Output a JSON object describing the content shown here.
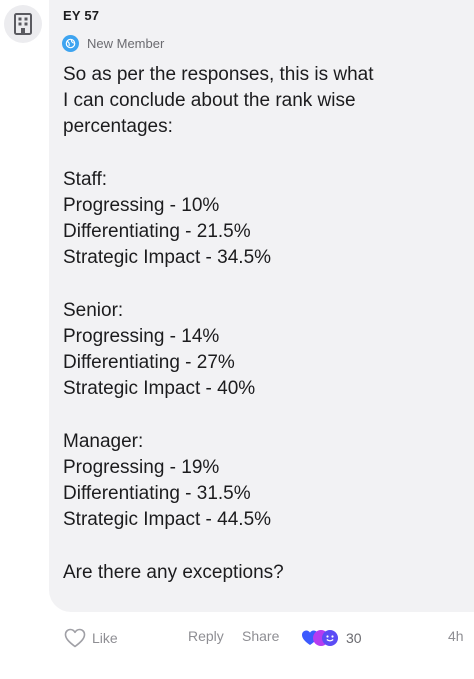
{
  "post": {
    "author": "EY 57",
    "role": "New Member",
    "body_lines": [
      "So as per the responses, this is what",
      "I can conclude about the rank wise",
      "percentages:",
      "",
      "Staff:",
      "Progressing - 10%",
      "Differentiating - 21.5%",
      "Strategic Impact - 34.5%",
      "",
      "Senior:",
      "Progressing - 14%",
      "Differentiating - 27%",
      "Strategic Impact - 40%",
      "",
      "Manager:",
      "Progressing - 19%",
      "Differentiating - 31.5%",
      "Strategic Impact - 44.5%",
      "",
      "Are there any exceptions?"
    ]
  },
  "actions": {
    "like_label": "Like",
    "reply_label": "Reply",
    "share_label": "Share",
    "reaction_count": "30",
    "timestamp": "4h"
  },
  "icons": {
    "avatar": "building-icon",
    "role": "globe-badge-icon",
    "like": "heart-outline-icon",
    "reactions": "reaction-emoji-icon"
  },
  "colors": {
    "bubble_bg": "#f2f2f4",
    "role_badge": "#3ea4f0",
    "reaction_blue": "#3d5afe",
    "reaction_purple": "#b53cf0"
  }
}
